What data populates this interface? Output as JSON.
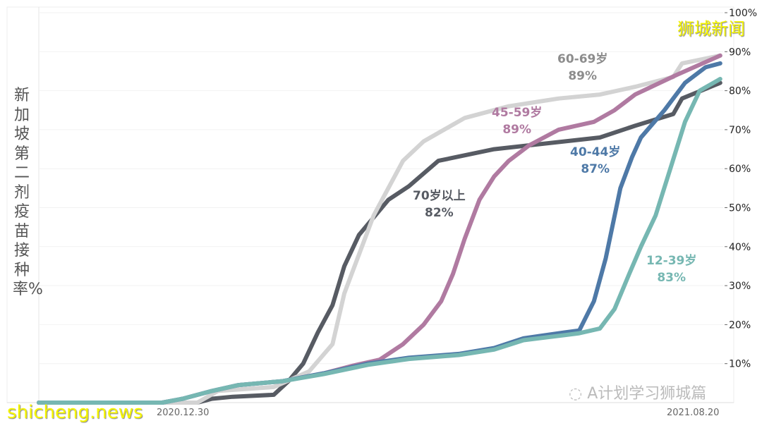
{
  "watermarks": {
    "top_right": "狮城新闻",
    "bottom_left": "shicheng.news",
    "wechat": "A计划学习狮城篇"
  },
  "chart_data": {
    "type": "line",
    "title": "",
    "ylabel": "新加坡第二剂疫苗接种率%",
    "xlabel": "",
    "x_unit": "days since 2020.12.30",
    "xlim": [
      0,
      233
    ],
    "ylim": [
      0,
      100
    ],
    "x_tick_labels": [
      "2020.12.30",
      "2021.08.20"
    ],
    "y_ticks": [
      10,
      20,
      30,
      40,
      50,
      60,
      70,
      80,
      90,
      100
    ],
    "y_tick_labels": [
      "10%",
      "20%",
      "30%",
      "40%",
      "50%",
      "60%",
      "70%",
      "80%",
      "90%",
      "100%"
    ],
    "grid": true,
    "series": [
      {
        "name": "70岁以上",
        "final_label": "82%",
        "color": "#575b63",
        "x": [
          0,
          54,
          59,
          66,
          80,
          85,
          90,
          95,
          100,
          104,
          109,
          119,
          126,
          136,
          155,
          191,
          203,
          216,
          219,
          232
        ],
        "y": [
          0,
          0,
          1,
          1.5,
          2,
          5.5,
          10,
          18,
          25,
          35,
          43,
          52,
          55.5,
          62,
          65,
          68,
          71,
          74,
          78,
          82
        ]
      },
      {
        "name": "60-69岁",
        "final_label": "89%",
        "color": "#d3d3d3",
        "x": [
          0,
          54,
          61,
          80,
          92,
          100,
          104,
          109,
          114,
          119,
          124,
          131,
          138,
          145,
          160,
          177,
          191,
          203,
          216,
          219,
          232
        ],
        "y": [
          0,
          0,
          3,
          4,
          8,
          15,
          28,
          38,
          48,
          55,
          62,
          67,
          70,
          73,
          76,
          78,
          79,
          81,
          83.5,
          87,
          89
        ]
      },
      {
        "name": "45-59岁",
        "final_label": "89%",
        "color": "#b07aa1",
        "x": [
          0,
          42,
          49,
          59,
          68,
          83,
          97,
          107,
          116,
          124,
          131,
          137,
          141,
          145,
          150,
          155,
          160,
          167,
          177,
          189,
          196,
          203,
          217,
          232
        ],
        "y": [
          0,
          0,
          1,
          3,
          4.5,
          5.5,
          7.5,
          9.5,
          11,
          15,
          20,
          26,
          33,
          42,
          52,
          58,
          62,
          66,
          70,
          72,
          75,
          79,
          84,
          89
        ]
      },
      {
        "name": "40-44岁",
        "final_label": "87%",
        "color": "#4e79a7",
        "x": [
          0,
          42,
          49,
          59,
          68,
          83,
          97,
          112,
          126,
          143,
          155,
          165,
          179,
          184,
          189,
          193,
          198,
          202,
          205,
          213,
          220,
          227,
          232
        ],
        "y": [
          0,
          0,
          1,
          3,
          4.5,
          5.5,
          7.5,
          10,
          11.5,
          12.5,
          14,
          16.5,
          18,
          18.5,
          26,
          37,
          55,
          63,
          68,
          75,
          82,
          86,
          87
        ]
      },
      {
        "name": "12-39岁",
        "final_label": "83%",
        "color": "#76b7b2",
        "x": [
          0,
          42,
          49,
          59,
          68,
          83,
          97,
          112,
          126,
          143,
          155,
          165,
          179,
          184,
          191,
          196,
          201,
          205,
          210,
          215,
          220,
          225,
          232
        ],
        "y": [
          0,
          0,
          1,
          3,
          4.5,
          5.5,
          7.3,
          9.7,
          11.2,
          12.2,
          13.6,
          16,
          17.3,
          17.8,
          19,
          24,
          33,
          40,
          48,
          60,
          72,
          80,
          83
        ]
      }
    ]
  }
}
